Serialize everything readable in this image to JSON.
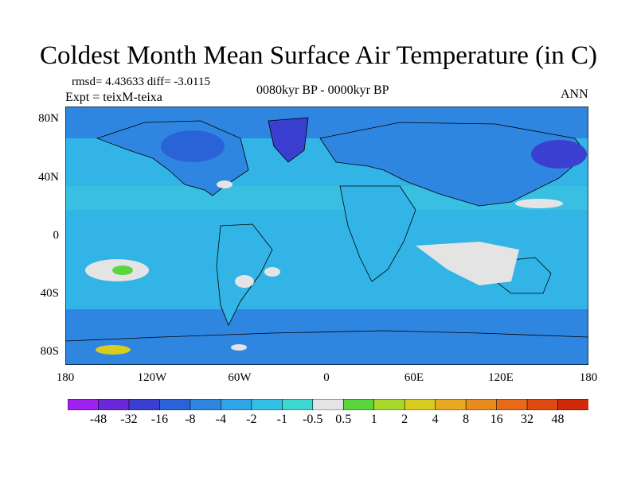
{
  "title": "Coldest Month Mean Surface Air Temperature (in C)",
  "stats": "rmsd= 4.43633  diff= -3.0115",
  "experiment": "Expt = teixM-teixa",
  "period": "0080kyr BP - 0000kyr BP",
  "season": "ANN",
  "lat_labels": [
    "80N",
    "40N",
    "0",
    "40S",
    "80S"
  ],
  "lon_labels": [
    "180",
    "120W",
    "60W",
    "0",
    "60E",
    "120E",
    "180"
  ],
  "colorbar": {
    "labels": [
      "-48",
      "-32",
      "-16",
      "-8",
      "-4",
      "-2",
      "-1",
      "-0.5",
      "0.5",
      "1",
      "2",
      "4",
      "8",
      "16",
      "32",
      "48"
    ],
    "colors": [
      "#a020f0",
      "#6a28d8",
      "#3a3fd0",
      "#2a63d8",
      "#2f86e0",
      "#2ea5e8",
      "#33bfe6",
      "#3dd6d0",
      "#e4e4e4",
      "#5ad63c",
      "#a8d82e",
      "#d8cc1e",
      "#e8a820",
      "#e88a1e",
      "#e86a16",
      "#e04a10",
      "#d02a0a"
    ]
  },
  "colors": {
    "ocean_base": "#33b4e6",
    "land_base": "#2f86e0",
    "neutral": "#e4e4e4",
    "warm": "#5ad63c",
    "cold": "#2a63d8",
    "very_cold": "#3a3fd0"
  }
}
